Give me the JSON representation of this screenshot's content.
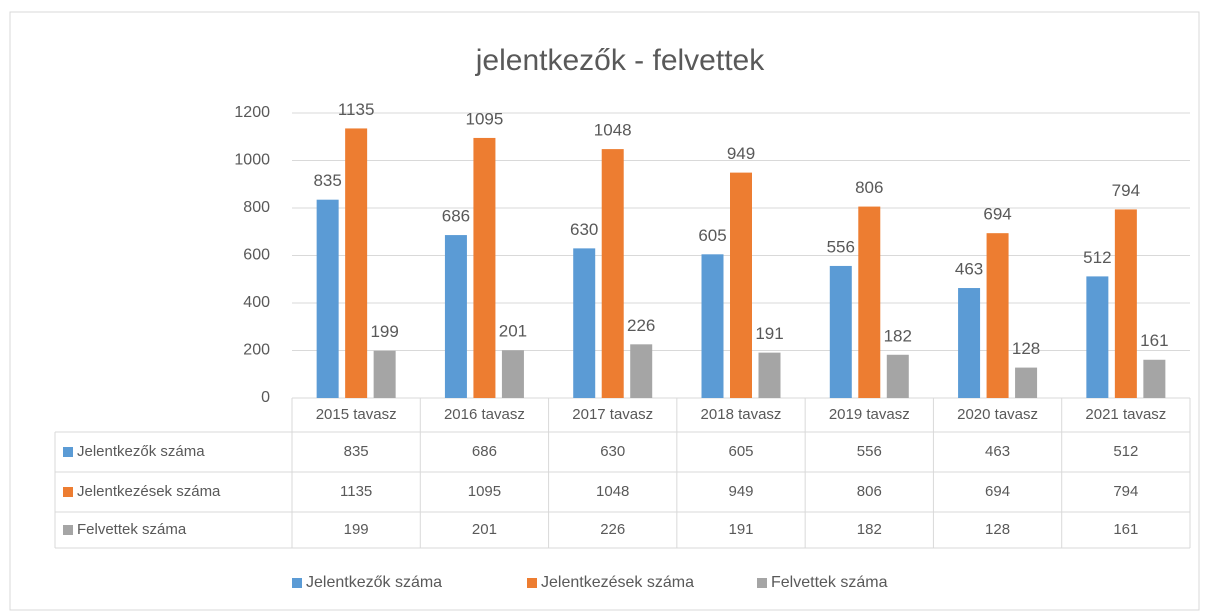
{
  "chart_data": {
    "type": "bar",
    "title": "jelentkezők - felvettek",
    "categories": [
      "2015 tavasz",
      "2016 tavasz",
      "2017 tavasz",
      "2018 tavasz",
      "2019 tavasz",
      "2020 tavasz",
      "2021 tavasz"
    ],
    "series": [
      {
        "name": "Jelentkezők száma",
        "color": "#5b9bd5",
        "values": [
          835,
          686,
          630,
          605,
          556,
          463,
          512
        ]
      },
      {
        "name": "Jelentkezések száma",
        "color": "#ed7d31",
        "values": [
          1135,
          1095,
          1048,
          949,
          806,
          694,
          794
        ]
      },
      {
        "name": "Felvettek száma",
        "color": "#a5a5a5",
        "values": [
          199,
          201,
          226,
          191,
          182,
          128,
          161
        ]
      }
    ],
    "ylim": [
      0,
      1200
    ],
    "yticks": [
      0,
      200,
      400,
      600,
      800,
      1000,
      1200
    ],
    "grid": true,
    "legend": "bottom"
  }
}
